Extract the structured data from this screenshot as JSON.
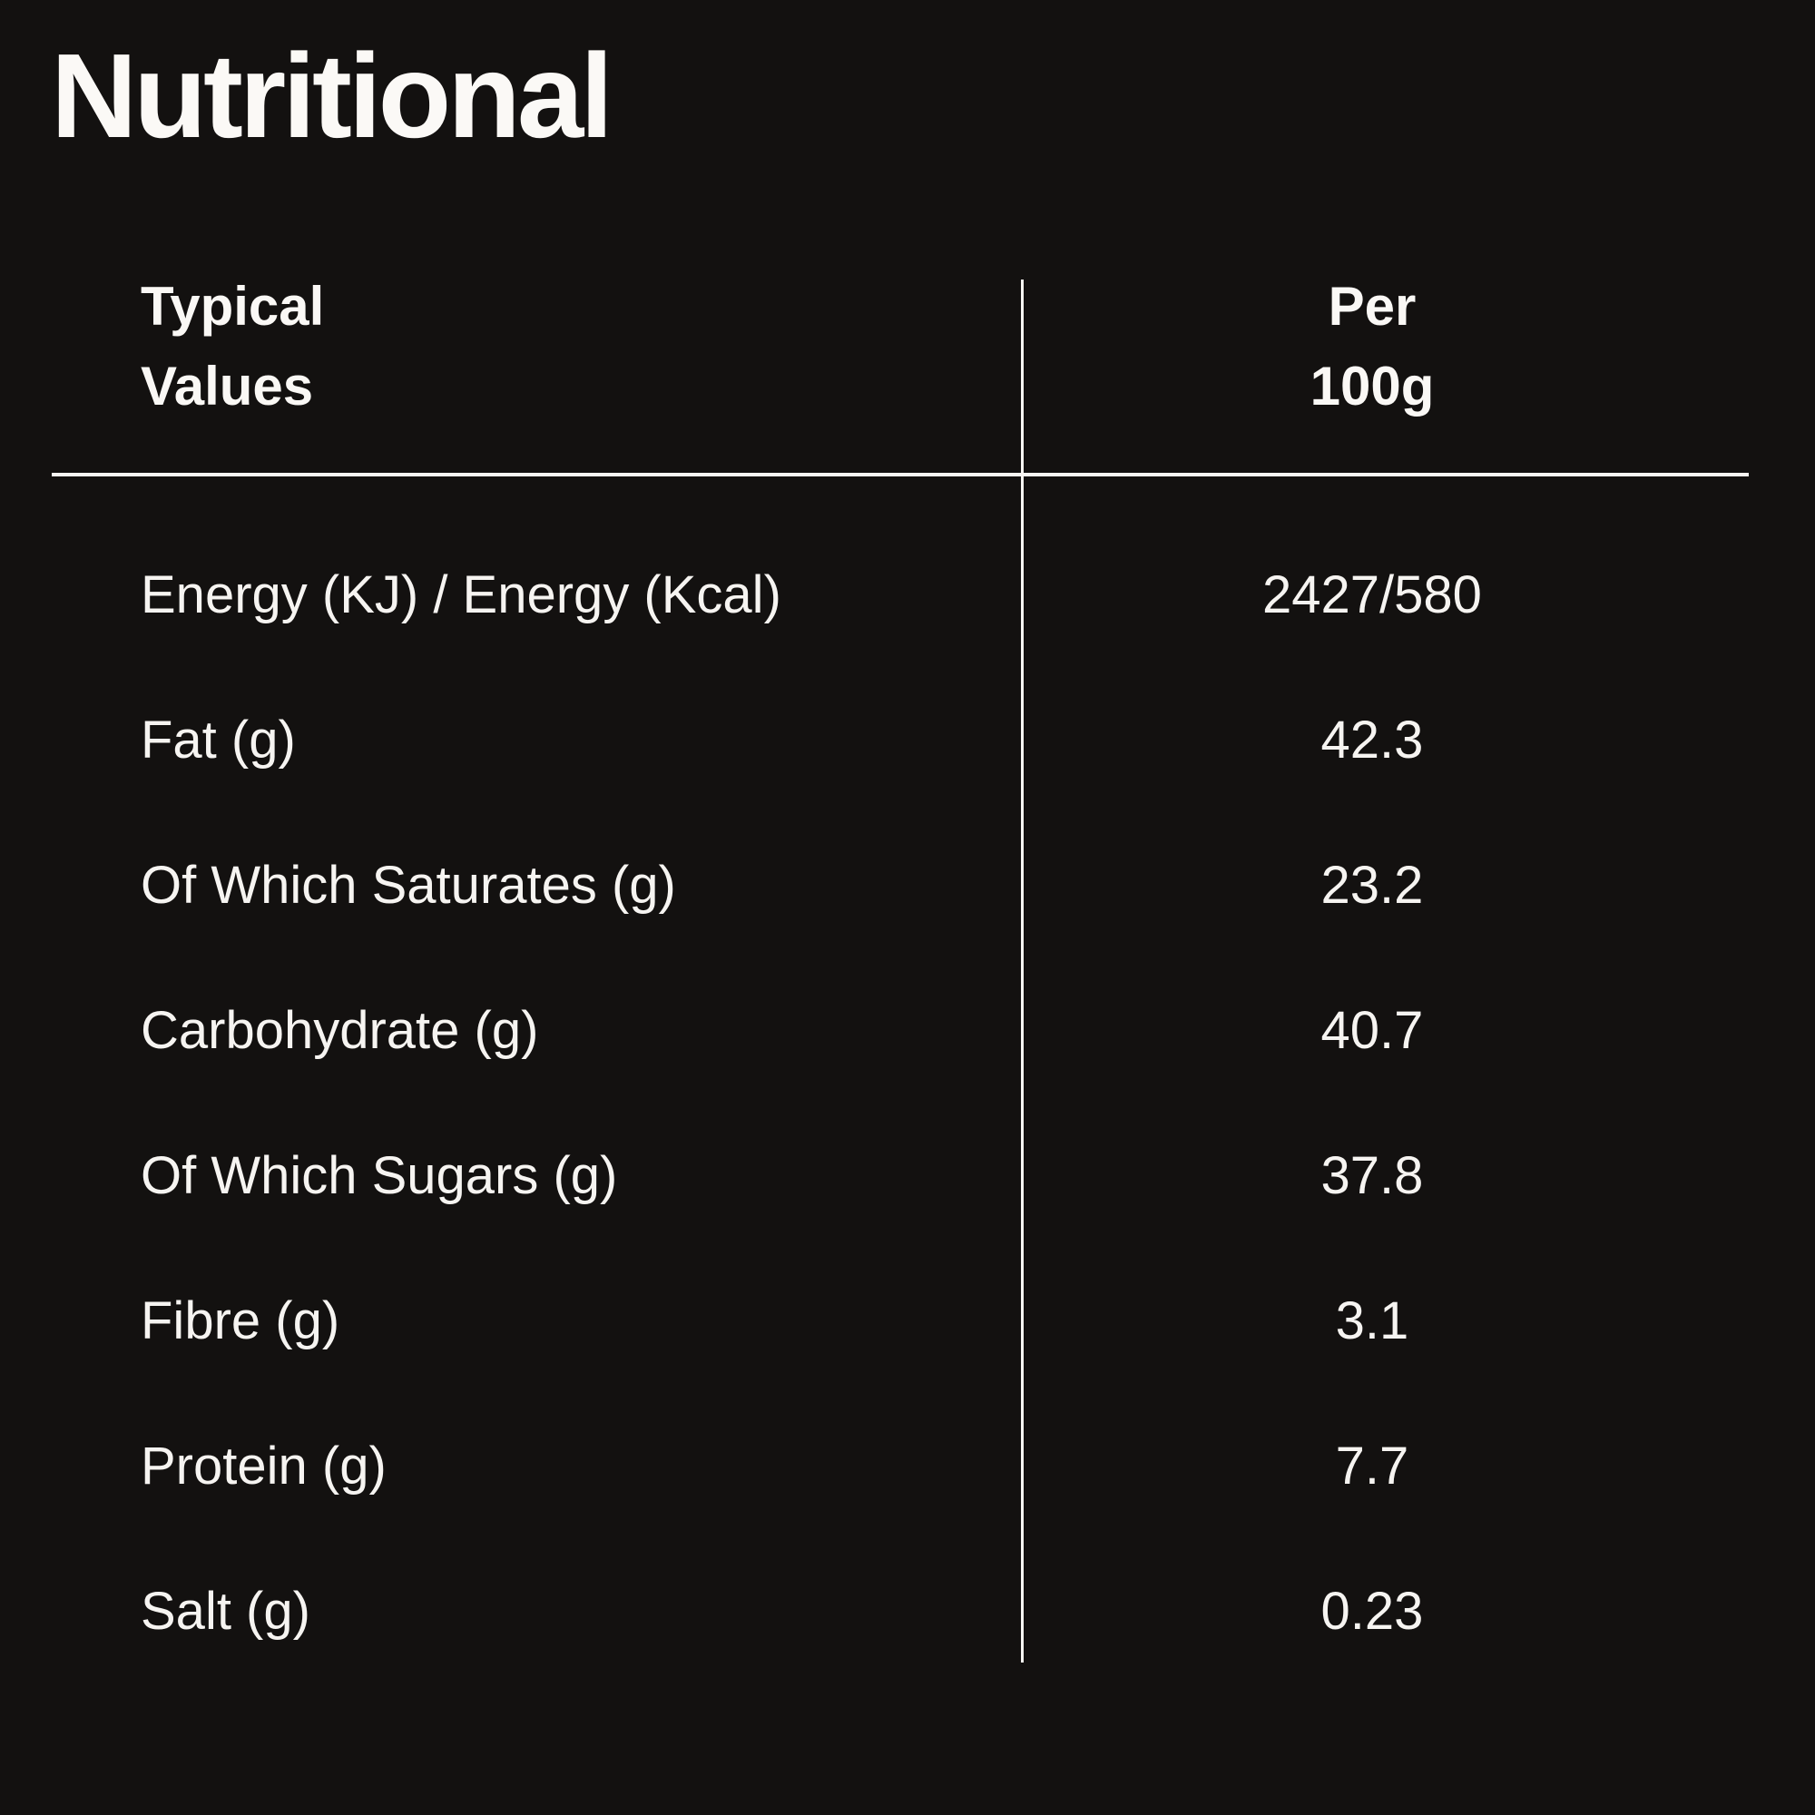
{
  "page": {
    "title": "Nutritional"
  },
  "colors": {
    "background": "#131110",
    "text": "#FAF8F5",
    "rule_line": "#F7F5F2"
  },
  "table": {
    "header": {
      "label_col": [
        "Typical",
        "Values"
      ],
      "value_col": [
        "Per",
        "100g"
      ]
    },
    "rows": [
      {
        "label": "Energy (KJ) / Energy (Kcal)",
        "value": "2427/580"
      },
      {
        "label": "Fat (g)",
        "value": "42.3"
      },
      {
        "label": "Of Which Saturates (g)",
        "value": "23.2"
      },
      {
        "label": "Carbohydrate (g)",
        "value": "40.7"
      },
      {
        "label": "Of Which Sugars (g)",
        "value": "37.8"
      },
      {
        "label": "Fibre (g)",
        "value": "3.1"
      },
      {
        "label": "Protein (g)",
        "value": "7.7"
      },
      {
        "label": "Salt (g)",
        "value": "0.23"
      }
    ]
  },
  "chart_data": {
    "type": "table",
    "title": "Nutritional",
    "columns": [
      "Typical Values",
      "Per 100g"
    ],
    "rows": [
      [
        "Energy (KJ) / Energy (Kcal)",
        "2427/580"
      ],
      [
        "Fat (g)",
        "42.3"
      ],
      [
        "Of Which Saturates (g)",
        "23.2"
      ],
      [
        "Carbohydrate (g)",
        "40.7"
      ],
      [
        "Of Which Sugars (g)",
        "37.8"
      ],
      [
        "Fibre (g)",
        "3.1"
      ],
      [
        "Protein (g)",
        "7.7"
      ],
      [
        "Salt (g)",
        "0.23"
      ]
    ]
  }
}
